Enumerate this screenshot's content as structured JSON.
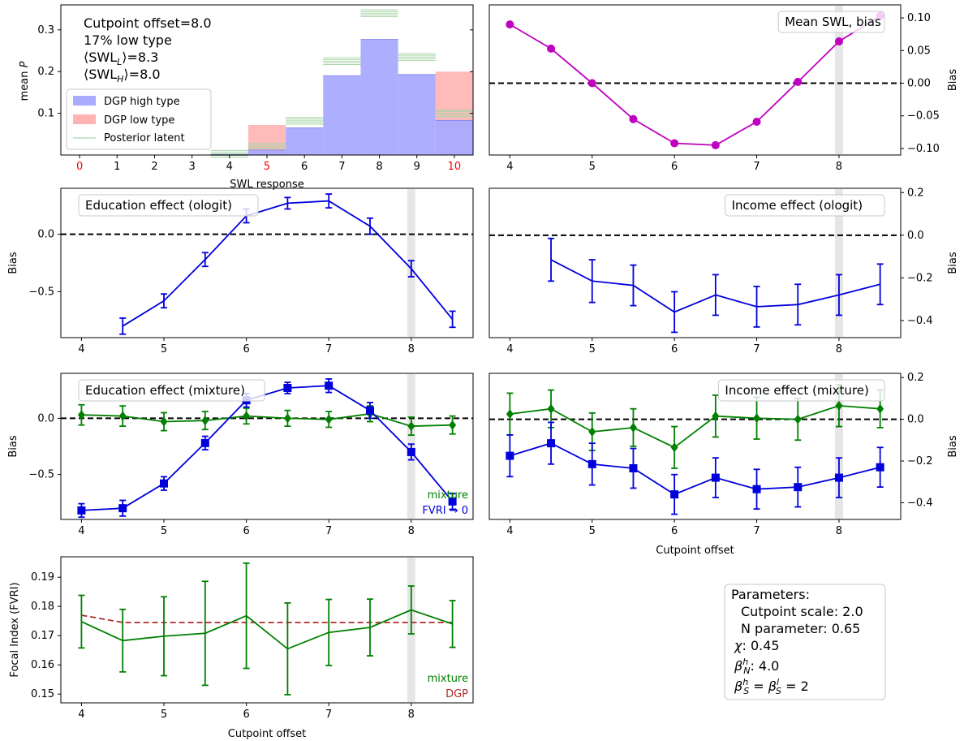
{
  "chart_data": [
    {
      "id": "histogram",
      "type": "bar",
      "xlabel": "SWL response",
      "ylabel": "mean P",
      "categories": [
        "0",
        "1",
        "2",
        "3",
        "4",
        "5",
        "6",
        "7",
        "8",
        "9",
        "10"
      ],
      "red_categories": [
        "0",
        "5",
        "10"
      ],
      "xlim": [
        -0.5,
        10.5
      ],
      "ylim": [
        0,
        0.36
      ],
      "yticks": [
        0.1,
        0.2,
        0.3
      ],
      "ytick_labels": [
        "0.1",
        "0.2",
        "0.3"
      ],
      "series": [
        {
          "name": "DGP high type",
          "color": "#aaaaff",
          "values": [
            0,
            0,
            0,
            0,
            0.001,
            0.012,
            0.065,
            0.19,
            0.277,
            0.193,
            0.083
          ]
        },
        {
          "name": "DGP low type",
          "color": "#ffb3b3",
          "values": [
            0,
            0,
            0,
            0,
            0.002,
            0.072,
            0.002,
            0.0,
            0.0,
            0.0,
            0.2
          ]
        },
        {
          "name": "Posterior latent",
          "color": "#a8d5a8",
          "values": [
            0,
            0,
            0,
            0,
            0.003,
            0.02,
            0.082,
            0.225,
            0.34,
            0.235,
            0.1
          ]
        }
      ],
      "annotation": [
        "Cutpoint offset=8.0",
        "17% low type",
        "⟨SWL_L⟩=8.3",
        "⟨SWL_H⟩=8.0"
      ]
    },
    {
      "id": "mean-swl-bias",
      "type": "line",
      "title": "Mean SWL, bias",
      "ylabel": "Bias",
      "xlim": [
        3.75,
        8.75
      ],
      "ylim": [
        -0.11,
        0.12
      ],
      "xticks": [
        4,
        5,
        6,
        7,
        8
      ],
      "yticks": [
        -0.1,
        -0.05,
        0.0,
        0.05,
        0.1
      ],
      "ytick_labels": [
        "−0.10",
        "−0.05",
        "0.00",
        "0.05",
        "0.10"
      ],
      "series": [
        {
          "name": "",
          "color": "#c000c0",
          "x": [
            4,
            4.5,
            5,
            5.5,
            6,
            6.5,
            7,
            7.5,
            8,
            8.5
          ],
          "y": [
            0.09,
            0.053,
            0.0,
            -0.055,
            -0.092,
            -0.095,
            -0.059,
            0.002,
            0.064,
            0.103
          ]
        }
      ]
    },
    {
      "id": "education-ologit",
      "type": "line",
      "title": "Education effect (ologit)",
      "ylabel": "Bias",
      "xlim": [
        3.75,
        8.75
      ],
      "ylim": [
        -0.9,
        0.4
      ],
      "xticks": [
        4,
        5,
        6,
        7,
        8
      ],
      "yticks": [
        -0.5,
        0.0
      ],
      "ytick_labels": [
        "−0.5",
        "0.0"
      ],
      "series": [
        {
          "name": "",
          "color": "#0000dd",
          "x": [
            4.5,
            5,
            5.5,
            6,
            6.5,
            7,
            7.5,
            8,
            8.5
          ],
          "y": [
            -0.8,
            -0.58,
            -0.22,
            0.16,
            0.27,
            0.29,
            0.07,
            -0.3,
            -0.74
          ],
          "err": [
            0.07,
            0.06,
            0.06,
            0.06,
            0.05,
            0.06,
            0.07,
            0.07,
            0.07
          ]
        }
      ]
    },
    {
      "id": "income-ologit",
      "type": "line",
      "title": "Income effect (ologit)",
      "ylabel": "Bias",
      "xlim": [
        3.75,
        8.75
      ],
      "ylim": [
        -0.48,
        0.22
      ],
      "xticks": [
        4,
        5,
        6,
        7,
        8
      ],
      "yticks": [
        -0.4,
        -0.2,
        0.0,
        0.2
      ],
      "ytick_labels": [
        "−0.4",
        "−0.2",
        "0.0",
        "0.2"
      ],
      "series": [
        {
          "name": "",
          "color": "#0000dd",
          "x": [
            4.5,
            5,
            5.5,
            6,
            6.5,
            7,
            7.5,
            8,
            8.5
          ],
          "y": [
            -0.115,
            -0.215,
            -0.235,
            -0.36,
            -0.28,
            -0.335,
            -0.325,
            -0.28,
            -0.23
          ],
          "err": [
            0.1,
            0.1,
            0.095,
            0.095,
            0.095,
            0.095,
            0.095,
            0.095,
            0.095
          ]
        }
      ]
    },
    {
      "id": "education-mixture",
      "type": "line",
      "title": "Education effect (mixture)",
      "ylabel": "Bias",
      "xlim": [
        3.75,
        8.75
      ],
      "ylim": [
        -0.9,
        0.4
      ],
      "xticks": [
        4,
        5,
        6,
        7,
        8
      ],
      "yticks": [
        -0.5,
        0.0
      ],
      "ytick_labels": [
        "−0.5",
        "0.0"
      ],
      "series": [
        {
          "name": "mixture",
          "color": "#008000",
          "marker": "diamond",
          "x": [
            4,
            4.5,
            5,
            5.5,
            6,
            6.5,
            7,
            7.5,
            8,
            8.5
          ],
          "y": [
            0.03,
            0.02,
            -0.03,
            -0.02,
            0.02,
            0.0,
            -0.01,
            0.04,
            -0.07,
            -0.06
          ],
          "err": [
            0.09,
            0.09,
            0.08,
            0.08,
            0.07,
            0.07,
            0.07,
            0.07,
            0.08,
            0.08
          ]
        },
        {
          "name": "FVRI → 0",
          "color": "#0000dd",
          "marker": "square",
          "x": [
            4,
            4.5,
            5,
            5.5,
            6,
            6.5,
            7,
            7.5,
            8,
            8.5
          ],
          "y": [
            -0.82,
            -0.8,
            -0.58,
            -0.22,
            0.16,
            0.27,
            0.29,
            0.07,
            -0.3,
            -0.74
          ],
          "err": [
            0.06,
            0.07,
            0.06,
            0.06,
            0.06,
            0.05,
            0.06,
            0.07,
            0.07,
            0.07
          ]
        }
      ]
    },
    {
      "id": "income-mixture",
      "type": "line",
      "title": "Income effect (mixture)",
      "ylabel": "Bias",
      "xlabel": "Cutpoint offset",
      "xlim": [
        3.75,
        8.75
      ],
      "ylim": [
        -0.48,
        0.22
      ],
      "xticks": [
        4,
        5,
        6,
        7,
        8
      ],
      "yticks": [
        -0.4,
        -0.2,
        0.0,
        0.2
      ],
      "ytick_labels": [
        "−0.4",
        "−0.2",
        "0.0",
        "0.2"
      ],
      "series": [
        {
          "name": "",
          "color": "#008000",
          "marker": "diamond",
          "x": [
            4,
            4.5,
            5,
            5.5,
            6,
            6.5,
            7,
            7.5,
            8,
            8.5
          ],
          "y": [
            0.025,
            0.05,
            -0.06,
            -0.04,
            -0.135,
            0.015,
            0.005,
            0.0,
            0.065,
            0.05
          ],
          "err": [
            0.1,
            0.09,
            0.09,
            0.09,
            0.1,
            0.1,
            0.1,
            0.1,
            0.1,
            0.09
          ]
        },
        {
          "name": "",
          "color": "#0000dd",
          "marker": "square",
          "x": [
            4,
            4.5,
            5,
            5.5,
            6,
            6.5,
            7,
            7.5,
            8,
            8.5
          ],
          "y": [
            -0.175,
            -0.115,
            -0.215,
            -0.235,
            -0.36,
            -0.28,
            -0.335,
            -0.325,
            -0.28,
            -0.23
          ],
          "err": [
            0.1,
            0.1,
            0.1,
            0.095,
            0.095,
            0.095,
            0.095,
            0.095,
            0.095,
            0.095
          ]
        }
      ]
    },
    {
      "id": "fvri",
      "type": "line",
      "ylabel": "Focal Index (FVRI)",
      "xlabel": "Cutpoint offset",
      "xlim": [
        3.75,
        8.75
      ],
      "ylim": [
        0.147,
        0.197
      ],
      "xticks": [
        4,
        5,
        6,
        7,
        8
      ],
      "yticks": [
        0.15,
        0.16,
        0.17,
        0.18,
        0.19
      ],
      "ytick_labels": [
        "0.15",
        "0.16",
        "0.17",
        "0.18",
        "0.19"
      ],
      "series": [
        {
          "name": "mixture",
          "color": "#008000",
          "x": [
            4,
            4.5,
            5,
            5.5,
            6,
            6.5,
            7,
            7.5,
            8,
            8.5
          ],
          "y": [
            0.1748,
            0.1683,
            0.1698,
            0.1708,
            0.1768,
            0.1655,
            0.1711,
            0.1728,
            0.1788,
            0.174
          ],
          "err": [
            0.009,
            0.0107,
            0.0135,
            0.0178,
            0.018,
            0.0157,
            0.0113,
            0.0097,
            0.0082,
            0.008
          ]
        },
        {
          "name": "DGP",
          "color": "#b02a2a",
          "dashed": true,
          "x": [
            4,
            4.5,
            5,
            5.5,
            6,
            6.5,
            7,
            7.5,
            8,
            8.5
          ],
          "y": [
            0.177,
            0.1745,
            0.1745,
            0.1745,
            0.1745,
            0.1745,
            0.1745,
            0.1745,
            0.1745,
            0.1745
          ]
        }
      ]
    }
  ],
  "parameters_box": {
    "heading": "Parameters:",
    "line1": "Cutpoint scale: 2.0",
    "line2": "N parameter: 0.65"
  }
}
